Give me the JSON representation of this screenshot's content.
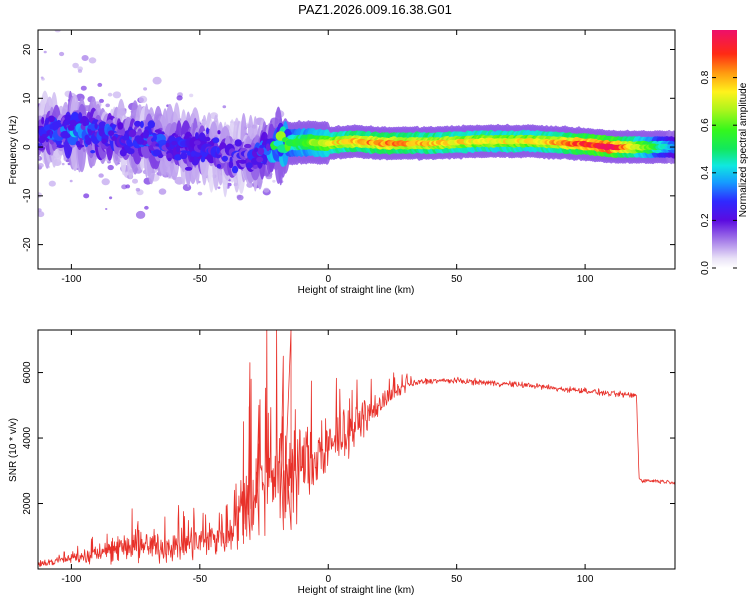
{
  "figure": {
    "title": "PAZ1.2026.009.16.38.G01"
  },
  "chart_data": [
    {
      "type": "heatmap",
      "title": "PAZ1.2026.009.16.38.G01",
      "xlabel": "Height of straight line (km)",
      "ylabel": "Frequency (Hz)",
      "xlim": [
        -113,
        135
      ],
      "ylim": [
        -25,
        24
      ],
      "xticks": [
        -100,
        -50,
        0,
        50,
        100
      ],
      "yticks": [
        -20,
        -10,
        0,
        10,
        20
      ],
      "colorbar": {
        "label": "Normalized spectral amplitude",
        "range": [
          0,
          1
        ],
        "ticks": [
          "0.0",
          "0.2",
          "0.4",
          "0.6",
          "0.8"
        ]
      },
      "ridge": {
        "x": [
          -113,
          -100,
          -90,
          -80,
          -70,
          -60,
          -50,
          -40,
          -30,
          -20,
          -10,
          0,
          10,
          20,
          40,
          60,
          80,
          100,
          110,
          135
        ],
        "freq": [
          3,
          3.5,
          3,
          2,
          1,
          0.5,
          0,
          -1,
          -2,
          0.5,
          1,
          0.8,
          1.2,
          0.8,
          0.8,
          1.2,
          1.2,
          0.6,
          0,
          0
        ],
        "amplitude": [
          0.2,
          0.3,
          0.25,
          0.22,
          0.25,
          0.22,
          0.2,
          0.2,
          0.2,
          0.45,
          0.6,
          0.75,
          0.8,
          0.85,
          0.8,
          0.75,
          0.75,
          0.9,
          1.0,
          0.35
        ]
      }
    },
    {
      "type": "line",
      "title": "",
      "xlabel": "Height of straight line (km)",
      "ylabel": "SNR (10 * v/v)",
      "xlim": [
        -113,
        135
      ],
      "ylim": [
        0,
        7300
      ],
      "xticks": [
        -100,
        -50,
        0,
        50,
        100
      ],
      "yticks": [
        2000,
        4000,
        6000
      ],
      "color": "#e8312a",
      "series": [
        {
          "name": "SNR",
          "x": [
            -113,
            -100,
            -90,
            -80,
            -70,
            -60,
            -50,
            -40,
            -35,
            -30,
            -25,
            -20,
            -15,
            -10,
            -5,
            0,
            5,
            10,
            15,
            20,
            25,
            30,
            35,
            40,
            50,
            60,
            70,
            80,
            90,
            100,
            110,
            120,
            121,
            122,
            125,
            135
          ],
          "y": [
            150,
            300,
            500,
            650,
            700,
            700,
            800,
            1100,
            1700,
            2300,
            2800,
            3000,
            3000,
            3100,
            3400,
            3600,
            4100,
            4300,
            4700,
            5000,
            5300,
            5600,
            5700,
            5750,
            5750,
            5700,
            5650,
            5600,
            5500,
            5450,
            5350,
            5300,
            2800,
            2700,
            2700,
            2650
          ],
          "noise": [
            150,
            250,
            400,
            550,
            600,
            650,
            700,
            1100,
            1400,
            1900,
            2200,
            2000,
            2400,
            1600,
            1200,
            1200,
            1000,
            800,
            600,
            400,
            300,
            200,
            150,
            120,
            120,
            120,
            120,
            120,
            120,
            120,
            120,
            120,
            80,
            80,
            80,
            80
          ],
          "spikes": [
            {
              "x": -33,
              "y": 4500
            },
            {
              "x": -30.5,
              "y": 6300
            },
            {
              "x": -27,
              "y": 5000
            },
            {
              "x": -17.5,
              "y": 6500
            },
            {
              "x": -14.5,
              "y": 7300
            }
          ]
        }
      ]
    }
  ]
}
